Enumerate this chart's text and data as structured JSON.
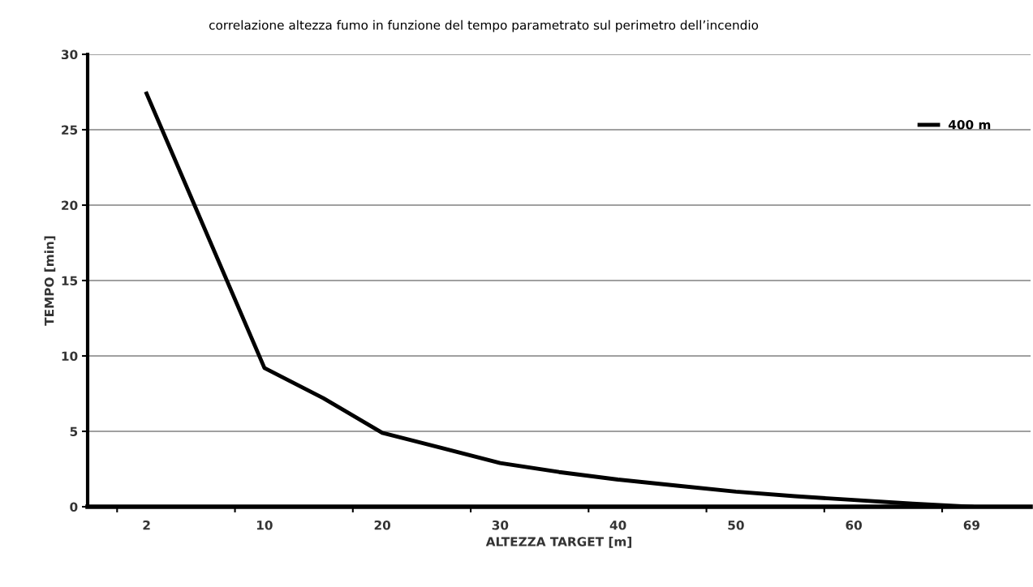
{
  "chart_data": {
    "type": "line",
    "title": "correlazione altezza fumo in funzione del tempo parametrato sul perimetro dell’incendio",
    "xlabel": "ALTEZZA TARGET [m]",
    "ylabel": "TEMPO [min]",
    "categories": [
      "2",
      null,
      "10",
      null,
      "20",
      null,
      "30",
      null,
      "40",
      null,
      "50",
      null,
      "60",
      null,
      "69"
    ],
    "series": [
      {
        "name": "400 m",
        "color": "#000000",
        "values": [
          27.4,
          18.3,
          9.2,
          7.2,
          4.9,
          3.9,
          2.9,
          2.3,
          1.8,
          1.4,
          1.0,
          0.7,
          0.45,
          0.2,
          0
        ]
      }
    ],
    "ylim": [
      0,
      30
    ],
    "yticks": [
      0,
      5,
      10,
      15,
      20,
      25,
      30
    ],
    "grid": "y",
    "legend": "top right",
    "marker": "none",
    "line_style": "solid"
  }
}
